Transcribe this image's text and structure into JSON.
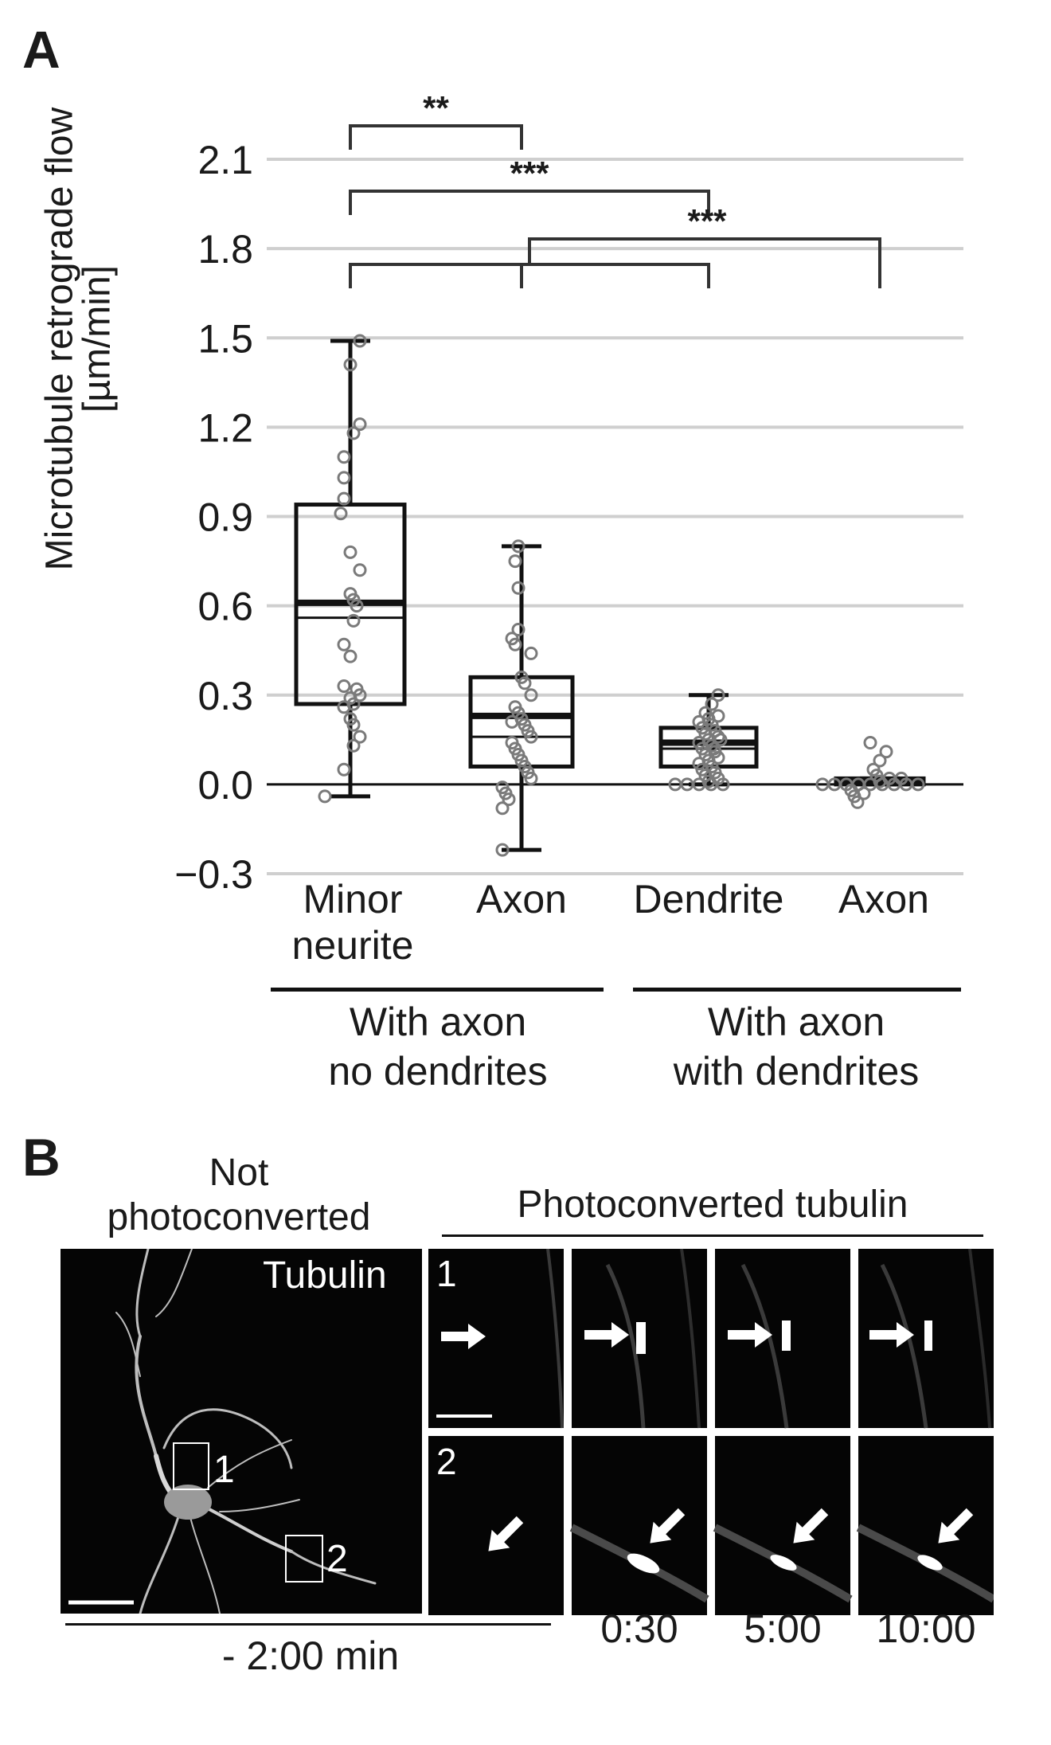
{
  "panel_a": {
    "letter": "A",
    "ylabel_line1": "Microtubule retrograde flow",
    "ylabel_line2": "[µm/min]",
    "categories": [
      "Minor\nneurite",
      "Axon",
      "Dendrite",
      "Axon"
    ],
    "groups": [
      "With axon\nno dendrites",
      "With axon\nwith dendrites"
    ],
    "significance": [
      "**",
      "***",
      "***"
    ],
    "chart_data": {
      "type": "box",
      "ylabel": "Microtubule retrograde flow [µm/min]",
      "ylim": [
        -0.3,
        2.1
      ],
      "yticks": [
        2.1,
        1.8,
        1.5,
        1.2,
        0.9,
        0.6,
        0.3,
        0.0,
        -0.3
      ],
      "ytick_labels": [
        "2.1",
        "1.8",
        "1.5",
        "1.2",
        "0.9",
        "0.6",
        "0.3",
        "0.0",
        "−0.3"
      ],
      "grid": true,
      "categories": [
        "Minor neurite",
        "Axon",
        "Dendrite",
        "Axon"
      ],
      "groups": [
        "With axon no dendrites",
        "With axon with dendrites"
      ],
      "boxes": [
        {
          "category": "Minor neurite",
          "whisker_low": -0.04,
          "q1": 0.27,
          "median": 0.61,
          "mean": 0.56,
          "q3": 0.94,
          "whisker_high": 1.49,
          "points": [
            1.49,
            1.41,
            1.21,
            1.18,
            1.1,
            1.03,
            0.96,
            0.91,
            0.78,
            0.72,
            0.64,
            0.62,
            0.6,
            0.55,
            0.47,
            0.43,
            0.33,
            0.32,
            0.3,
            0.29,
            0.27,
            0.26,
            0.22,
            0.2,
            0.16,
            0.13,
            0.05,
            -0.04
          ]
        },
        {
          "category": "Axon",
          "whisker_low": -0.22,
          "q1": 0.06,
          "median": 0.23,
          "mean": 0.16,
          "q3": 0.36,
          "whisker_high": 0.8,
          "points": [
            0.8,
            0.75,
            0.66,
            0.52,
            0.49,
            0.47,
            0.44,
            0.36,
            0.34,
            0.3,
            0.26,
            0.24,
            0.22,
            0.21,
            0.2,
            0.18,
            0.16,
            0.14,
            0.12,
            0.1,
            0.08,
            0.06,
            0.04,
            0.02,
            -0.01,
            -0.03,
            -0.05,
            -0.08,
            -0.22
          ]
        },
        {
          "category": "Dendrite",
          "whisker_low": 0.0,
          "q1": 0.06,
          "median": 0.14,
          "mean": 0.12,
          "q3": 0.19,
          "whisker_high": 0.3,
          "points": [
            0.3,
            0.27,
            0.24,
            0.23,
            0.22,
            0.21,
            0.2,
            0.19,
            0.18,
            0.17,
            0.16,
            0.15,
            0.15,
            0.14,
            0.13,
            0.12,
            0.12,
            0.11,
            0.1,
            0.09,
            0.08,
            0.07,
            0.06,
            0.05,
            0.04,
            0.03,
            0.02,
            0.01,
            0.0,
            0.0,
            0.0,
            0.0,
            0.0
          ]
        },
        {
          "category": "Axon",
          "whisker_low": 0.0,
          "q1": 0.0,
          "median": 0.01,
          "mean": 0.01,
          "q3": 0.02,
          "whisker_high": 0.02,
          "points": [
            0.14,
            0.11,
            0.08,
            0.05,
            0.03,
            0.02,
            0.02,
            0.01,
            0.0,
            0.0,
            0.0,
            0.0,
            0.0,
            0.0,
            0.0,
            0.0,
            0.0,
            -0.02,
            -0.03,
            -0.04,
            -0.06
          ]
        }
      ],
      "comparisons": [
        {
          "from": "Minor neurite",
          "to": "Axon (no dendrites)",
          "label": "**"
        },
        {
          "from": "Minor neurite",
          "to": "Dendrite",
          "label": "***"
        },
        {
          "from": "Minor neurite, Axon (no dendrites), Dendrite",
          "to": "Axon (with dendrites)",
          "label": "***"
        }
      ]
    }
  },
  "panel_b": {
    "letter": "B",
    "left_title": "Not\nphotoconverted",
    "left_label": "Tubulin",
    "right_title": "Photoconverted tubulin",
    "roi_labels": [
      "1",
      "2"
    ],
    "row_labels": [
      "1",
      "2"
    ],
    "time_labels": [
      "- 2:00 min",
      "0:30",
      "5:00",
      "10:00"
    ]
  }
}
